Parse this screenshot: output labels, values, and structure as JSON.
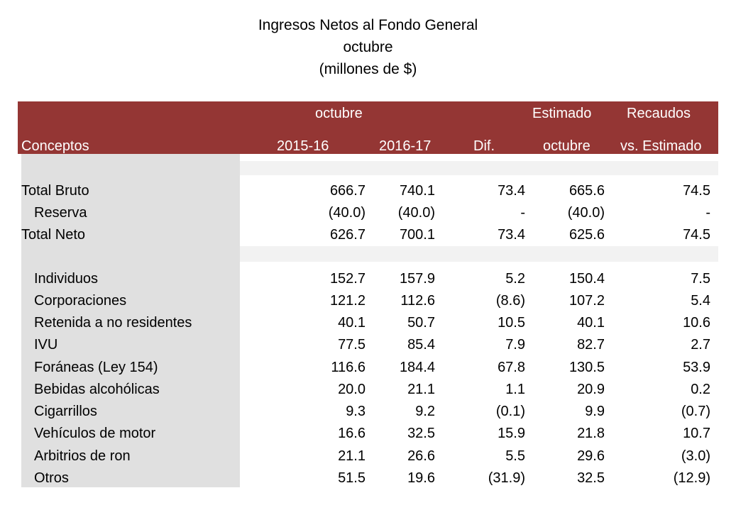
{
  "title": {
    "line1": "Ingresos Netos al Fondo General",
    "line2": "octubre",
    "line3": "(millones de $)"
  },
  "header": {
    "octubre_group": "octubre",
    "estimado": "Estimado",
    "recaudos": "Recaudos",
    "conceptos": "Conceptos",
    "y1": "2015-16",
    "y2": "2016-17",
    "dif": "Dif.",
    "estimado_month": "octubre",
    "vs_estimado": "vs. Estimado"
  },
  "colors": {
    "header_bg": "#943634",
    "label_panel": "#e0e0e0",
    "band": "#f2f2f2"
  },
  "rows": [
    {
      "label": "Total Bruto",
      "indent": false,
      "v1": "666.7",
      "v2": "740.1",
      "dif": "73.4",
      "est": "665.6",
      "vs": "74.5"
    },
    {
      "label": "Reserva",
      "indent": true,
      "v1": "(40.0)",
      "v2": "(40.0)",
      "dif": "-",
      "est": "(40.0)",
      "vs": "-"
    },
    {
      "label": "Total Neto",
      "indent": false,
      "v1": "626.7",
      "v2": "700.1",
      "dif": "73.4",
      "est": "625.6",
      "vs": "74.5"
    },
    {
      "label": "Individuos",
      "indent": true,
      "v1": "152.7",
      "v2": "157.9",
      "dif": "5.2",
      "est": "150.4",
      "vs": "7.5"
    },
    {
      "label": "Corporaciones",
      "indent": true,
      "v1": "121.2",
      "v2": "112.6",
      "dif": "(8.6)",
      "est": "107.2",
      "vs": "5.4"
    },
    {
      "label": "Retenida a no residentes",
      "indent": true,
      "v1": "40.1",
      "v2": "50.7",
      "dif": "10.5",
      "est": "40.1",
      "vs": "10.6"
    },
    {
      "label": "IVU",
      "indent": true,
      "v1": "77.5",
      "v2": "85.4",
      "dif": "7.9",
      "est": "82.7",
      "vs": "2.7"
    },
    {
      "label": "Foráneas (Ley 154)",
      "indent": true,
      "v1": "116.6",
      "v2": "184.4",
      "dif": "67.8",
      "est": "130.5",
      "vs": "53.9"
    },
    {
      "label": "Bebidas alcohólicas",
      "indent": true,
      "v1": "20.0",
      "v2": "21.1",
      "dif": "1.1",
      "est": "20.9",
      "vs": "0.2"
    },
    {
      "label": "Cigarrillos",
      "indent": true,
      "v1": "9.3",
      "v2": "9.2",
      "dif": "(0.1)",
      "est": "9.9",
      "vs": "(0.7)"
    },
    {
      "label": "Vehículos de motor",
      "indent": true,
      "v1": "16.6",
      "v2": "32.5",
      "dif": "15.9",
      "est": "21.8",
      "vs": "10.7"
    },
    {
      "label": "Arbitrios de ron",
      "indent": true,
      "v1": "21.1",
      "v2": "26.6",
      "dif": "5.5",
      "est": "29.6",
      "vs": "(3.0)"
    },
    {
      "label": "Otros",
      "indent": true,
      "v1": "51.5",
      "v2": "19.6",
      "dif": "(31.9)",
      "est": "32.5",
      "vs": "(12.9)"
    }
  ]
}
